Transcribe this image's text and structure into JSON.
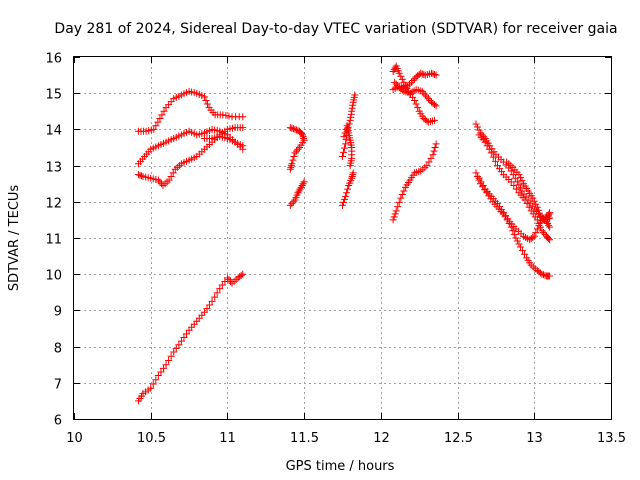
{
  "chart_data": {
    "type": "scatter",
    "title": "Day 281 of 2024, Sidereal Day-to-day VTEC variation (SDTVAR) for receiver gaia",
    "xlabel": "GPS time / hours",
    "ylabel": "SDTVAR / TECUs",
    "xlim": [
      10,
      13.5
    ],
    "ylim": [
      6,
      16
    ],
    "xticks": [
      "10",
      "10.5",
      "11",
      "11.5",
      "12",
      "12.5",
      "13",
      "13.5"
    ],
    "yticks": [
      "6",
      "7",
      "8",
      "9",
      "10",
      "11",
      "12",
      "13",
      "14",
      "15",
      "16"
    ],
    "grid": true,
    "marker": "+",
    "color": "#ff0000",
    "series": [
      {
        "name": "track-1",
        "points": [
          [
            10.42,
            6.5
          ],
          [
            10.45,
            6.7
          ],
          [
            10.5,
            6.85
          ],
          [
            10.55,
            7.2
          ],
          [
            10.6,
            7.5
          ],
          [
            10.65,
            7.85
          ],
          [
            10.7,
            8.15
          ],
          [
            10.75,
            8.45
          ],
          [
            10.8,
            8.7
          ],
          [
            10.85,
            8.95
          ],
          [
            10.9,
            9.25
          ],
          [
            10.95,
            9.6
          ],
          [
            11.0,
            9.9
          ],
          [
            11.03,
            9.75
          ],
          [
            11.07,
            9.9
          ],
          [
            11.1,
            10.0
          ]
        ]
      },
      {
        "name": "track-2",
        "points": [
          [
            10.42,
            12.75
          ],
          [
            10.45,
            12.7
          ],
          [
            10.5,
            12.65
          ],
          [
            10.55,
            12.6
          ],
          [
            10.58,
            12.45
          ],
          [
            10.62,
            12.6
          ],
          [
            10.66,
            12.9
          ],
          [
            10.7,
            13.05
          ],
          [
            10.75,
            13.15
          ],
          [
            10.8,
            13.25
          ],
          [
            10.85,
            13.45
          ],
          [
            10.9,
            13.65
          ],
          [
            10.95,
            13.85
          ],
          [
            11.0,
            14.0
          ],
          [
            11.05,
            14.05
          ],
          [
            11.1,
            14.05
          ]
        ]
      },
      {
        "name": "track-3",
        "points": [
          [
            10.42,
            13.05
          ],
          [
            10.46,
            13.25
          ],
          [
            10.5,
            13.45
          ],
          [
            10.55,
            13.55
          ],
          [
            10.6,
            13.65
          ],
          [
            10.65,
            13.75
          ],
          [
            10.7,
            13.85
          ],
          [
            10.75,
            13.95
          ],
          [
            10.8,
            13.85
          ],
          [
            10.85,
            13.9
          ],
          [
            10.9,
            14.0
          ],
          [
            10.95,
            13.95
          ],
          [
            11.0,
            13.85
          ],
          [
            11.05,
            13.65
          ],
          [
            11.1,
            13.45
          ]
        ]
      },
      {
        "name": "track-4",
        "points": [
          [
            10.42,
            13.95
          ],
          [
            10.47,
            13.95
          ],
          [
            10.52,
            14.0
          ],
          [
            10.56,
            14.3
          ],
          [
            10.6,
            14.6
          ],
          [
            10.65,
            14.85
          ],
          [
            10.7,
            14.95
          ],
          [
            10.75,
            15.05
          ],
          [
            10.8,
            15.0
          ],
          [
            10.85,
            14.9
          ],
          [
            10.88,
            14.6
          ],
          [
            10.92,
            14.4
          ],
          [
            10.97,
            14.4
          ],
          [
            11.03,
            14.35
          ],
          [
            11.1,
            14.35
          ]
        ]
      },
      {
        "name": "track-5",
        "points": [
          [
            10.85,
            13.75
          ],
          [
            10.9,
            13.75
          ],
          [
            10.95,
            13.8
          ],
          [
            11.0,
            13.75
          ],
          [
            11.05,
            13.65
          ],
          [
            11.1,
            13.55
          ]
        ]
      },
      {
        "name": "track-6",
        "points": [
          [
            11.41,
            14.05
          ],
          [
            11.44,
            14.0
          ],
          [
            11.47,
            13.95
          ],
          [
            11.49,
            13.85
          ],
          [
            11.5,
            13.7
          ],
          [
            11.47,
            13.5
          ],
          [
            11.44,
            13.35
          ],
          [
            11.42,
            13.05
          ],
          [
            11.41,
            12.9
          ]
        ]
      },
      {
        "name": "track-7",
        "points": [
          [
            11.41,
            11.9
          ],
          [
            11.44,
            12.05
          ],
          [
            11.46,
            12.25
          ],
          [
            11.48,
            12.4
          ],
          [
            11.5,
            12.55
          ]
        ]
      },
      {
        "name": "track-8",
        "points": [
          [
            11.75,
            13.25
          ],
          [
            11.77,
            13.6
          ],
          [
            11.78,
            13.95
          ],
          [
            11.8,
            14.25
          ],
          [
            11.81,
            14.5
          ],
          [
            11.82,
            14.75
          ],
          [
            11.83,
            14.95
          ]
        ]
      },
      {
        "name": "track-9",
        "points": [
          [
            11.76,
            13.8
          ],
          [
            11.78,
            14.1
          ],
          [
            11.79,
            13.9
          ],
          [
            11.8,
            13.7
          ],
          [
            11.81,
            13.5
          ],
          [
            11.81,
            13.2
          ],
          [
            11.8,
            13.0
          ]
        ]
      },
      {
        "name": "track-10",
        "points": [
          [
            11.75,
            11.9
          ],
          [
            11.77,
            12.15
          ],
          [
            11.79,
            12.45
          ],
          [
            11.81,
            12.65
          ],
          [
            11.82,
            12.8
          ]
        ]
      },
      {
        "name": "track-11",
        "points": [
          [
            12.08,
            15.6
          ],
          [
            12.1,
            15.75
          ],
          [
            12.12,
            15.55
          ],
          [
            12.15,
            15.3
          ],
          [
            12.18,
            15.05
          ],
          [
            12.22,
            14.8
          ],
          [
            12.25,
            14.5
          ],
          [
            12.28,
            14.3
          ],
          [
            12.31,
            14.2
          ],
          [
            12.35,
            14.25
          ]
        ]
      },
      {
        "name": "track-12",
        "points": [
          [
            12.08,
            15.1
          ],
          [
            12.12,
            15.2
          ],
          [
            12.16,
            15.15
          ],
          [
            12.2,
            15.3
          ],
          [
            12.23,
            15.45
          ],
          [
            12.26,
            15.55
          ],
          [
            12.29,
            15.5
          ],
          [
            12.33,
            15.55
          ],
          [
            12.36,
            15.5
          ]
        ]
      },
      {
        "name": "track-13",
        "points": [
          [
            12.09,
            15.3
          ],
          [
            12.12,
            15.15
          ],
          [
            12.15,
            15.05
          ],
          [
            12.19,
            15.0
          ],
          [
            12.23,
            15.1
          ],
          [
            12.27,
            15.05
          ],
          [
            12.3,
            14.9
          ],
          [
            12.33,
            14.75
          ],
          [
            12.36,
            14.65
          ]
        ]
      },
      {
        "name": "track-14",
        "points": [
          [
            12.08,
            11.5
          ],
          [
            12.1,
            11.75
          ],
          [
            12.13,
            12.1
          ],
          [
            12.16,
            12.4
          ],
          [
            12.19,
            12.6
          ],
          [
            12.22,
            12.8
          ],
          [
            12.26,
            12.85
          ],
          [
            12.3,
            13.0
          ],
          [
            12.34,
            13.3
          ],
          [
            12.36,
            13.6
          ]
        ]
      },
      {
        "name": "track-15",
        "points": [
          [
            12.62,
            14.15
          ],
          [
            12.65,
            13.9
          ],
          [
            12.68,
            13.75
          ],
          [
            12.71,
            13.55
          ],
          [
            12.75,
            13.3
          ],
          [
            12.8,
            13.1
          ],
          [
            12.85,
            12.85
          ],
          [
            12.89,
            12.55
          ],
          [
            12.92,
            12.3
          ],
          [
            12.96,
            12.05
          ],
          [
            13.0,
            11.8
          ],
          [
            13.04,
            11.6
          ],
          [
            13.08,
            11.45
          ],
          [
            13.1,
            11.3
          ]
        ]
      },
      {
        "name": "track-16",
        "points": [
          [
            12.64,
            13.85
          ],
          [
            12.68,
            13.65
          ],
          [
            12.72,
            13.35
          ],
          [
            12.76,
            13.0
          ],
          [
            12.8,
            12.75
          ],
          [
            12.85,
            12.55
          ],
          [
            12.9,
            12.25
          ],
          [
            12.94,
            12.05
          ],
          [
            12.98,
            11.75
          ],
          [
            13.02,
            11.5
          ],
          [
            13.05,
            11.2
          ],
          [
            13.08,
            11.05
          ],
          [
            13.1,
            10.95
          ]
        ]
      },
      {
        "name": "track-17",
        "points": [
          [
            12.62,
            12.8
          ],
          [
            12.65,
            12.5
          ],
          [
            12.69,
            12.25
          ],
          [
            12.73,
            12.0
          ],
          [
            12.77,
            11.8
          ],
          [
            12.81,
            11.6
          ],
          [
            12.85,
            11.3
          ],
          [
            12.88,
            11.0
          ],
          [
            12.91,
            10.75
          ],
          [
            12.95,
            10.45
          ],
          [
            12.98,
            10.25
          ],
          [
            13.02,
            10.1
          ],
          [
            13.05,
            10.0
          ],
          [
            13.08,
            9.95
          ],
          [
            13.1,
            9.95
          ]
        ]
      },
      {
        "name": "track-18",
        "points": [
          [
            12.64,
            12.65
          ],
          [
            12.68,
            12.35
          ],
          [
            12.72,
            12.15
          ],
          [
            12.76,
            11.95
          ],
          [
            12.8,
            11.7
          ],
          [
            12.84,
            11.45
          ],
          [
            12.88,
            11.25
          ],
          [
            12.93,
            11.05
          ],
          [
            12.97,
            10.95
          ],
          [
            13.0,
            11.05
          ],
          [
            13.03,
            11.35
          ],
          [
            13.06,
            11.55
          ],
          [
            13.09,
            11.6
          ],
          [
            13.1,
            11.7
          ]
        ]
      },
      {
        "name": "track-19",
        "points": [
          [
            12.82,
            13.1
          ],
          [
            12.86,
            12.95
          ],
          [
            12.9,
            12.75
          ],
          [
            12.93,
            12.5
          ],
          [
            12.96,
            12.3
          ],
          [
            12.99,
            12.1
          ],
          [
            13.02,
            11.85
          ],
          [
            13.04,
            11.6
          ],
          [
            13.07,
            11.5
          ],
          [
            13.1,
            11.55
          ]
        ]
      }
    ]
  }
}
